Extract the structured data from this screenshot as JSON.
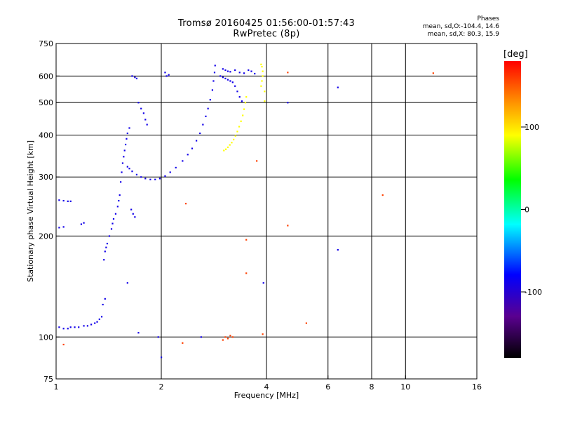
{
  "chart_data": {
    "type": "scatter",
    "title": "Tromsø 20160425 01:56:00-01:57:43",
    "subtitle": "RwPretec (8p)",
    "xlabel": "Frequency [MHz]",
    "ylabel": "Stationary phase Virtual Height [km]",
    "x_scale": "log2",
    "y_scale": "log",
    "xlim": [
      1,
      16
    ],
    "ylim": [
      75,
      750
    ],
    "x_ticks": [
      1,
      2,
      4,
      6,
      8,
      10,
      16
    ],
    "x_tick_labels": [
      "1",
      "2",
      "4",
      "6",
      "8",
      "10",
      "16"
    ],
    "y_ticks": [
      75,
      100,
      200,
      300,
      400,
      500,
      600,
      750
    ],
    "y_tick_labels": [
      "75",
      "100",
      "200",
      "300",
      "400",
      "500",
      "600",
      "750"
    ],
    "grid": true,
    "phase_stats": {
      "heading": "Phases",
      "line_o": "mean, sd,O:-104.4, 14.6",
      "line_x": "mean, sd,X:  80.3, 15.9"
    },
    "colorbar": {
      "label": "[deg]",
      "range": [
        -180,
        180
      ],
      "ticks": [
        100,
        0,
        -100
      ],
      "tick_labels": [
        "100",
        "0",
        "-100"
      ]
    },
    "series": [
      {
        "color_phase": -110,
        "points": [
          [
            1.02,
            107
          ],
          [
            1.05,
            106
          ],
          [
            1.08,
            106
          ],
          [
            1.1,
            107
          ],
          [
            1.13,
            107
          ],
          [
            1.16,
            107
          ],
          [
            1.2,
            108
          ],
          [
            1.23,
            108
          ],
          [
            1.26,
            109
          ],
          [
            1.29,
            110
          ],
          [
            1.31,
            111
          ],
          [
            1.33,
            113
          ],
          [
            1.35,
            115
          ],
          [
            1.02,
            256
          ],
          [
            1.05,
            255
          ],
          [
            1.08,
            254
          ],
          [
            1.1,
            254
          ],
          [
            1.02,
            212
          ],
          [
            1.05,
            213
          ],
          [
            1.18,
            217
          ],
          [
            1.2,
            219
          ],
          [
            1.37,
            170
          ],
          [
            1.38,
            180
          ],
          [
            1.39,
            185
          ],
          [
            1.4,
            190
          ],
          [
            1.42,
            200
          ],
          [
            1.44,
            210
          ],
          [
            1.45,
            218
          ],
          [
            1.46,
            225
          ],
          [
            1.48,
            233
          ],
          [
            1.5,
            245
          ],
          [
            1.51,
            255
          ],
          [
            1.52,
            265
          ],
          [
            1.53,
            290
          ],
          [
            1.54,
            310
          ],
          [
            1.55,
            330
          ],
          [
            1.56,
            345
          ],
          [
            1.57,
            360
          ],
          [
            1.58,
            375
          ],
          [
            1.59,
            390
          ],
          [
            1.6,
            405
          ],
          [
            1.62,
            420
          ],
          [
            1.6,
            322
          ],
          [
            1.62,
            318
          ],
          [
            1.65,
            312
          ],
          [
            1.7,
            305
          ],
          [
            1.75,
            300
          ],
          [
            1.8,
            297
          ],
          [
            1.86,
            295
          ],
          [
            1.92,
            295
          ],
          [
            1.98,
            297
          ],
          [
            2.05,
            302
          ],
          [
            2.12,
            310
          ],
          [
            2.2,
            320
          ],
          [
            2.3,
            335
          ],
          [
            2.38,
            350
          ],
          [
            2.45,
            365
          ],
          [
            2.52,
            385
          ],
          [
            2.58,
            405
          ],
          [
            2.63,
            430
          ],
          [
            2.68,
            455
          ],
          [
            2.72,
            480
          ],
          [
            2.76,
            510
          ],
          [
            2.8,
            545
          ],
          [
            2.82,
            580
          ],
          [
            2.84,
            615
          ],
          [
            2.85,
            645
          ],
          [
            1.65,
            600
          ],
          [
            1.68,
            595
          ],
          [
            1.7,
            590
          ],
          [
            2.05,
            615
          ],
          [
            2.07,
            600
          ],
          [
            2.1,
            605
          ],
          [
            1.64,
            240
          ],
          [
            1.66,
            233
          ],
          [
            1.68,
            228
          ],
          [
            2.95,
            600
          ],
          [
            3.0,
            595
          ],
          [
            3.05,
            590
          ],
          [
            3.1,
            585
          ],
          [
            3.15,
            580
          ],
          [
            3.2,
            575
          ],
          [
            3.25,
            560
          ],
          [
            3.3,
            540
          ],
          [
            3.35,
            520
          ],
          [
            3.4,
            505
          ],
          [
            3.0,
            630
          ],
          [
            3.05,
            625
          ],
          [
            3.1,
            620
          ],
          [
            3.15,
            618
          ],
          [
            3.25,
            625
          ],
          [
            3.35,
            615
          ],
          [
            3.45,
            612
          ],
          [
            3.55,
            625
          ],
          [
            3.62,
            620
          ],
          [
            3.7,
            610
          ],
          [
            1.72,
            500
          ],
          [
            1.75,
            480
          ],
          [
            1.78,
            465
          ],
          [
            1.8,
            445
          ],
          [
            1.82,
            430
          ],
          [
            1.36,
            125
          ],
          [
            1.38,
            130
          ],
          [
            1.72,
            103
          ],
          [
            1.96,
            100
          ],
          [
            2.6,
            100
          ],
          [
            3.92,
            145
          ],
          [
            6.4,
            182
          ],
          [
            6.4,
            555
          ],
          [
            4.6,
            500
          ],
          [
            1.6,
            145
          ],
          [
            2.0,
            87
          ]
        ]
      },
      {
        "color_phase": 100,
        "points": [
          [
            3.02,
            360
          ],
          [
            3.06,
            363
          ],
          [
            3.1,
            368
          ],
          [
            3.14,
            374
          ],
          [
            3.18,
            380
          ],
          [
            3.22,
            388
          ],
          [
            3.26,
            398
          ],
          [
            3.3,
            410
          ],
          [
            3.34,
            424
          ],
          [
            3.38,
            440
          ],
          [
            3.42,
            458
          ],
          [
            3.45,
            478
          ],
          [
            3.48,
            500
          ],
          [
            3.5,
            520
          ],
          [
            3.86,
            560
          ],
          [
            3.88,
            580
          ],
          [
            3.9,
            600
          ],
          [
            3.9,
            620
          ],
          [
            3.88,
            640
          ],
          [
            3.86,
            650
          ],
          [
            3.95,
            540
          ],
          [
            3.95,
            505
          ]
        ]
      },
      {
        "color_phase": 160,
        "points": [
          [
            3.0,
            98
          ],
          [
            3.05,
            100
          ],
          [
            3.1,
            99
          ],
          [
            3.15,
            101
          ],
          [
            3.2,
            100
          ],
          [
            1.05,
            95
          ],
          [
            2.3,
            96
          ],
          [
            3.9,
            102
          ],
          [
            5.2,
            110
          ],
          [
            8.6,
            265
          ],
          [
            12.0,
            612
          ],
          [
            4.6,
            615
          ],
          [
            3.75,
            335
          ],
          [
            3.5,
            195
          ],
          [
            3.5,
            155
          ],
          [
            4.6,
            215
          ],
          [
            2.35,
            250
          ]
        ]
      }
    ]
  }
}
